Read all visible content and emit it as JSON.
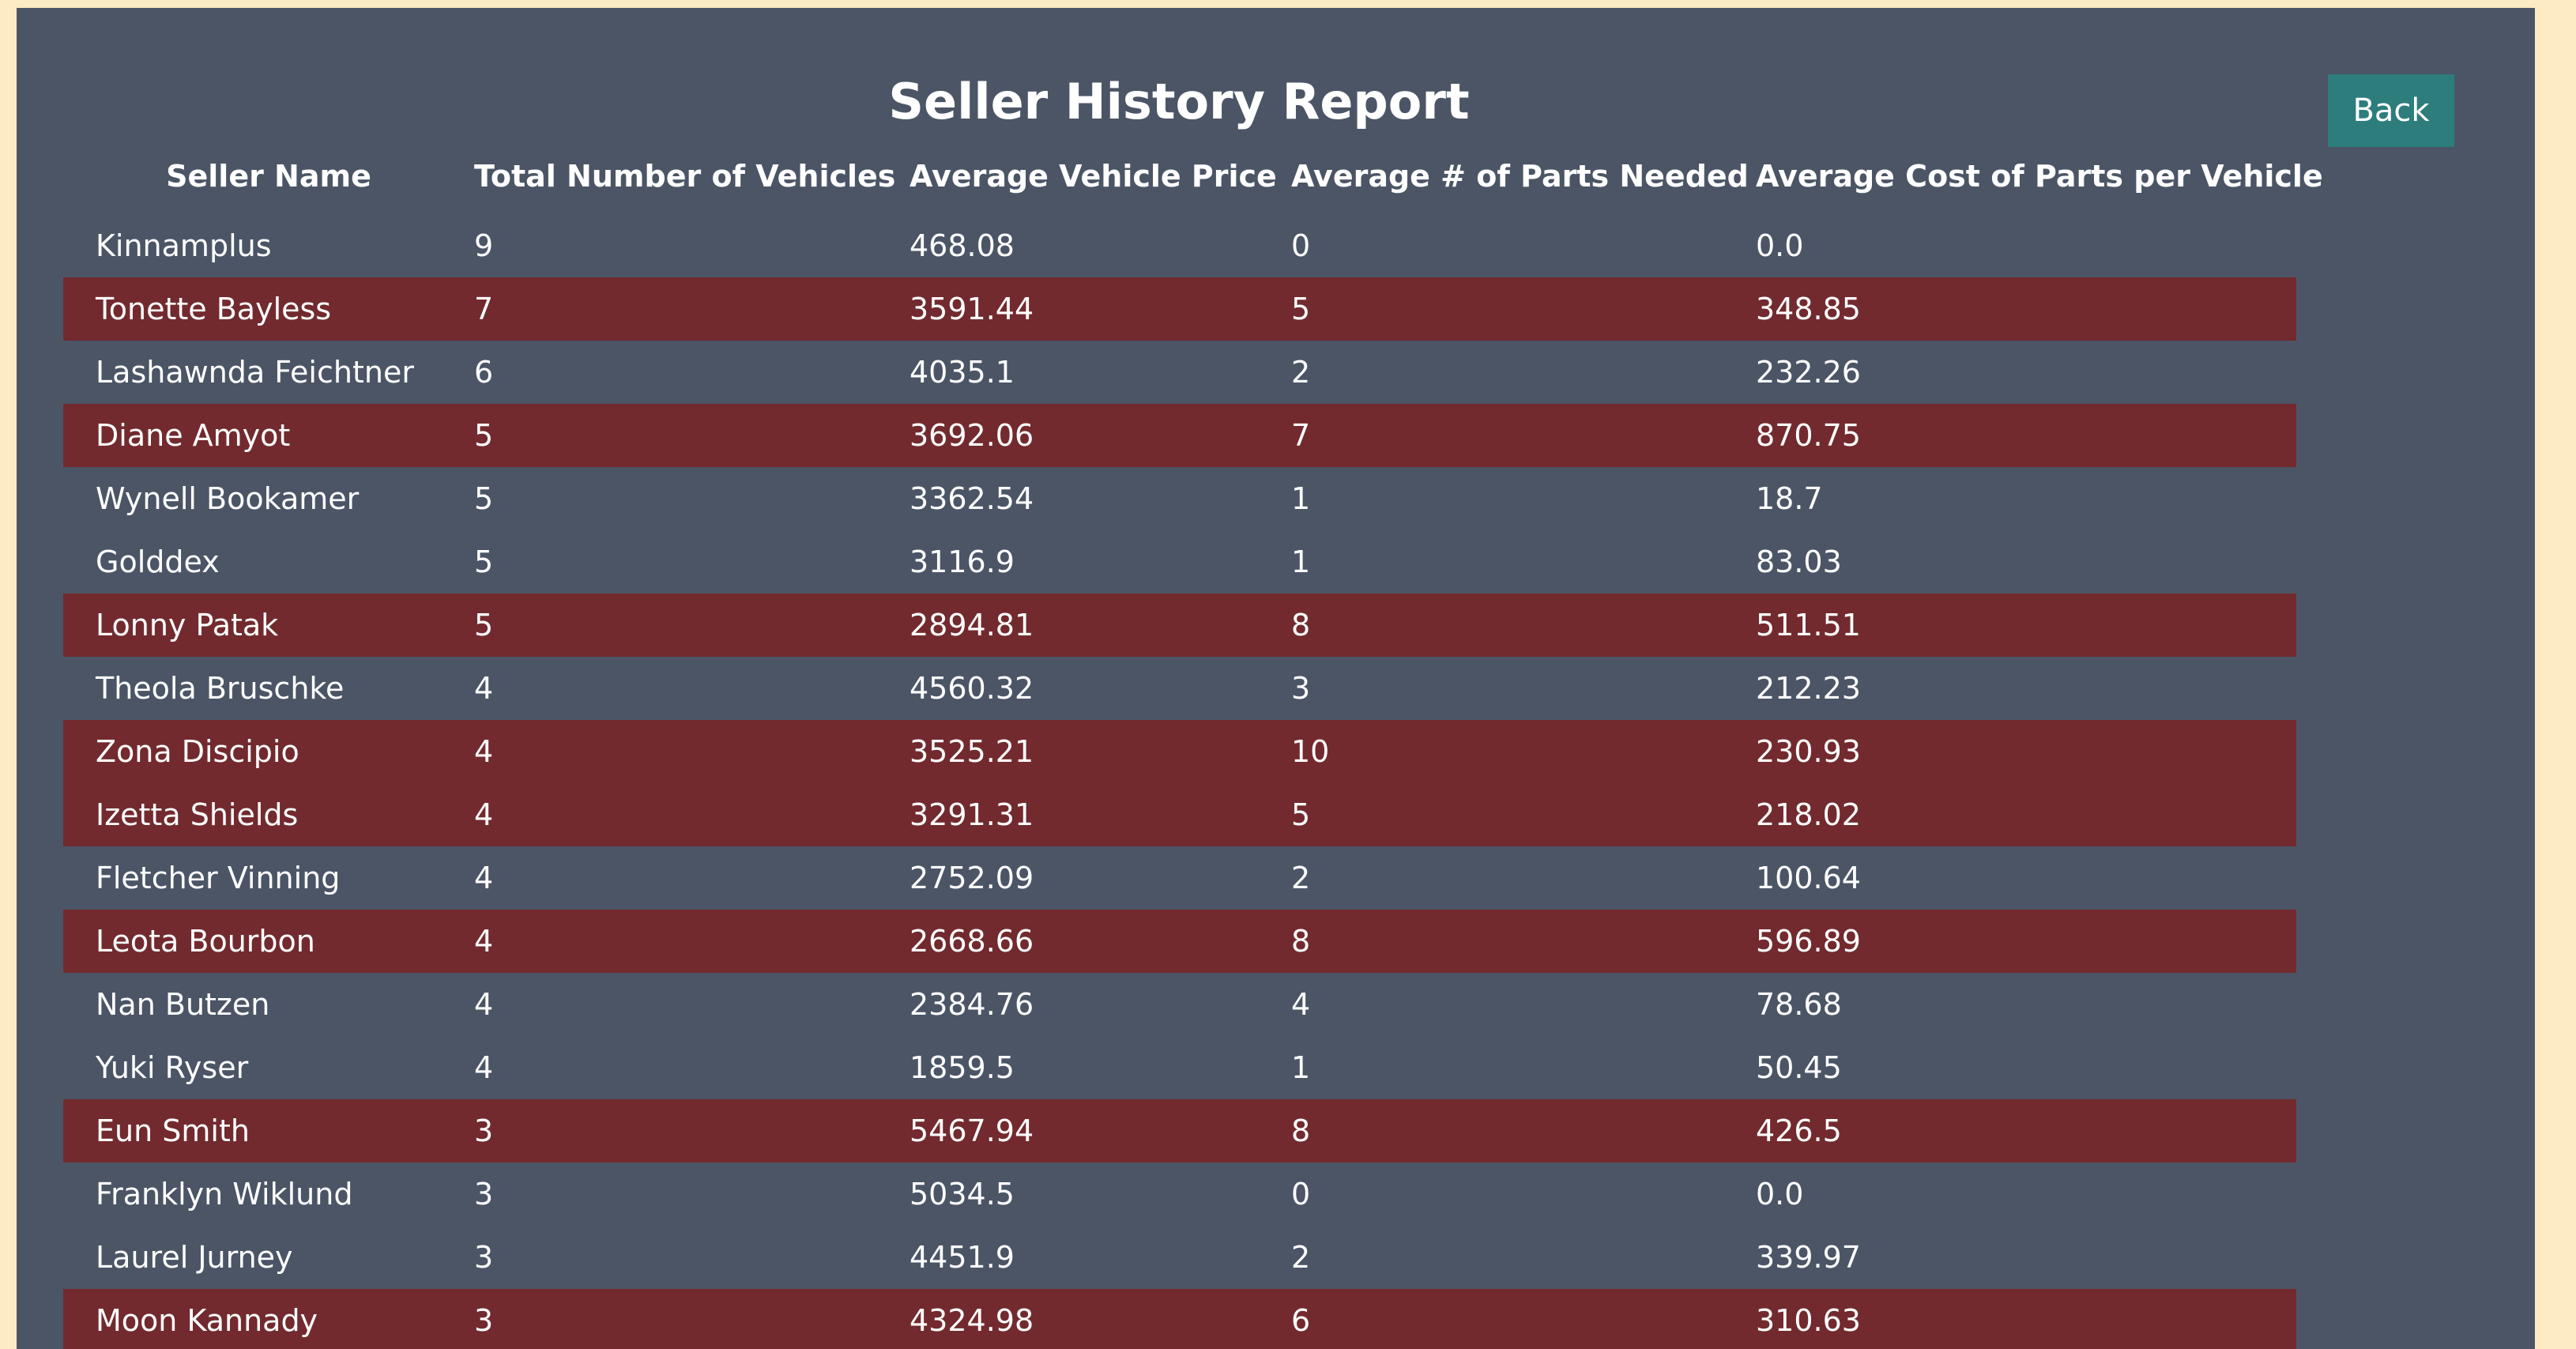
{
  "page": {
    "title": "Seller History Report",
    "back_label": "Back"
  },
  "table": {
    "headers": [
      "Seller Name",
      "Total Number of Vehicles",
      "Average Vehicle Price",
      "Average # of Parts Needed",
      "Average Cost of Parts per Vehicle"
    ],
    "rows": [
      {
        "name": "Kinnamplus",
        "vehicles": "9",
        "avg_price": "468.08",
        "avg_parts": "0",
        "avg_parts_cost": "0.0",
        "highlight": false
      },
      {
        "name": "Tonette Bayless",
        "vehicles": "7",
        "avg_price": "3591.44",
        "avg_parts": "5",
        "avg_parts_cost": "348.85",
        "highlight": true
      },
      {
        "name": "Lashawnda Feichtner",
        "vehicles": "6",
        "avg_price": "4035.1",
        "avg_parts": "2",
        "avg_parts_cost": "232.26",
        "highlight": false
      },
      {
        "name": "Diane Amyot",
        "vehicles": "5",
        "avg_price": "3692.06",
        "avg_parts": "7",
        "avg_parts_cost": "870.75",
        "highlight": true
      },
      {
        "name": "Wynell Bookamer",
        "vehicles": "5",
        "avg_price": "3362.54",
        "avg_parts": "1",
        "avg_parts_cost": "18.7",
        "highlight": false
      },
      {
        "name": "Golddex",
        "vehicles": "5",
        "avg_price": "3116.9",
        "avg_parts": "1",
        "avg_parts_cost": "83.03",
        "highlight": false
      },
      {
        "name": "Lonny Patak",
        "vehicles": "5",
        "avg_price": "2894.81",
        "avg_parts": "8",
        "avg_parts_cost": "511.51",
        "highlight": true
      },
      {
        "name": "Theola Bruschke",
        "vehicles": "4",
        "avg_price": "4560.32",
        "avg_parts": "3",
        "avg_parts_cost": "212.23",
        "highlight": false
      },
      {
        "name": "Zona Discipio",
        "vehicles": "4",
        "avg_price": "3525.21",
        "avg_parts": "10",
        "avg_parts_cost": "230.93",
        "highlight": true
      },
      {
        "name": "Izetta Shields",
        "vehicles": "4",
        "avg_price": "3291.31",
        "avg_parts": "5",
        "avg_parts_cost": "218.02",
        "highlight": true
      },
      {
        "name": "Fletcher Vinning",
        "vehicles": "4",
        "avg_price": "2752.09",
        "avg_parts": "2",
        "avg_parts_cost": "100.64",
        "highlight": false
      },
      {
        "name": "Leota Bourbon",
        "vehicles": "4",
        "avg_price": "2668.66",
        "avg_parts": "8",
        "avg_parts_cost": "596.89",
        "highlight": true
      },
      {
        "name": "Nan Butzen",
        "vehicles": "4",
        "avg_price": "2384.76",
        "avg_parts": "4",
        "avg_parts_cost": "78.68",
        "highlight": false
      },
      {
        "name": "Yuki Ryser",
        "vehicles": "4",
        "avg_price": "1859.5",
        "avg_parts": "1",
        "avg_parts_cost": "50.45",
        "highlight": false
      },
      {
        "name": "Eun Smith",
        "vehicles": "3",
        "avg_price": "5467.94",
        "avg_parts": "8",
        "avg_parts_cost": "426.5",
        "highlight": true
      },
      {
        "name": "Franklyn Wiklund",
        "vehicles": "3",
        "avg_price": "5034.5",
        "avg_parts": "0",
        "avg_parts_cost": "0.0",
        "highlight": false
      },
      {
        "name": "Laurel Jurney",
        "vehicles": "3",
        "avg_price": "4451.9",
        "avg_parts": "2",
        "avg_parts_cost": "339.97",
        "highlight": false
      },
      {
        "name": "Moon Kannady",
        "vehicles": "3",
        "avg_price": "4324.98",
        "avg_parts": "6",
        "avg_parts_cost": "310.63",
        "highlight": true
      }
    ]
  },
  "colors": {
    "page_background": "#fdebc3",
    "panel_background": "#4b5566",
    "highlight_row": "#722a2e",
    "back_button": "#2d7d7c",
    "text": "#ffffff"
  }
}
